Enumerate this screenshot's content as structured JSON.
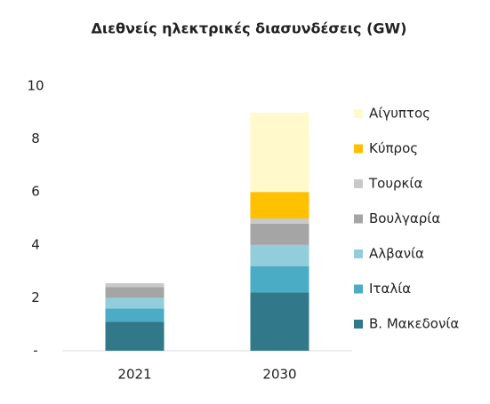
{
  "chart_data": {
    "type": "bar",
    "stacked": true,
    "title": "Διεθνείς ηλεκτρικές διασυνδέσεις (GW)",
    "categories": [
      "2021",
      "2030"
    ],
    "series": [
      {
        "name": "Β. Μακεδονία",
        "color": "#31788a",
        "values": [
          1.1,
          2.2
        ]
      },
      {
        "name": "Ιταλία",
        "color": "#4bacc6",
        "values": [
          0.5,
          1.0
        ]
      },
      {
        "name": "Αλβανία",
        "color": "#92cddc",
        "values": [
          0.4,
          0.8
        ]
      },
      {
        "name": "Βουλγαρία",
        "color": "#a5a5a5",
        "values": [
          0.4,
          0.8
        ]
      },
      {
        "name": "Τουρκία",
        "color": "#c9c9c9",
        "values": [
          0.15,
          0.2
        ]
      },
      {
        "name": "Κύπρος",
        "color": "#ffc000",
        "values": [
          0,
          1.0
        ]
      },
      {
        "name": "Αίγυπτος",
        "color": "#fff9cc",
        "values": [
          0,
          3.0
        ]
      }
    ],
    "ylim": [
      0,
      10
    ],
    "yticks": [
      {
        "value": 0,
        "label": "-"
      },
      2,
      4,
      6,
      8,
      10
    ],
    "legend": "right"
  }
}
